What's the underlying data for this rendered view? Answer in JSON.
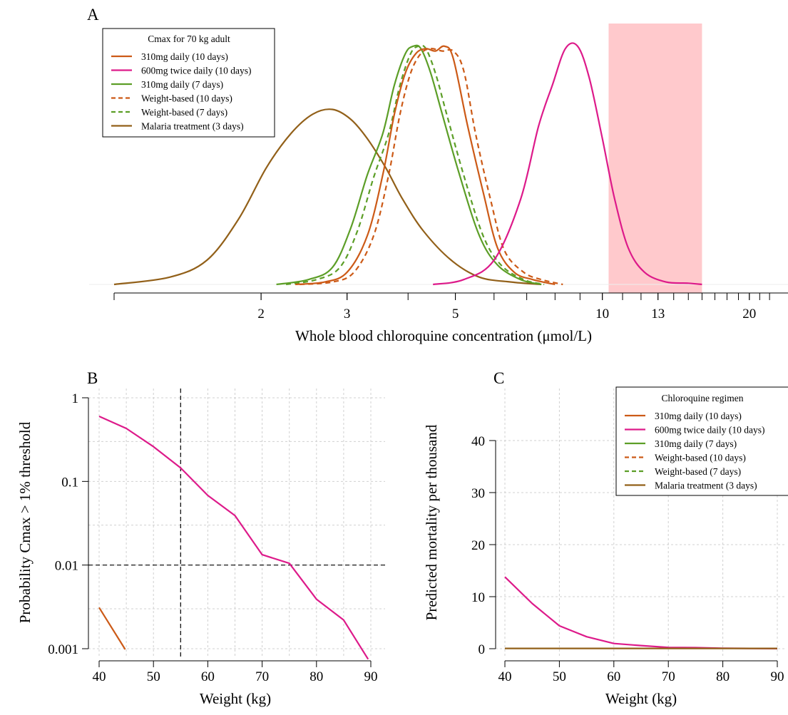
{
  "chart_data": [
    {
      "panel": "A",
      "type": "line",
      "subtype": "density",
      "xlabel": "Whole blood chloroquine concentration (μmol/L)",
      "xscale": "log",
      "xlim": [
        1,
        24
      ],
      "xticks": [
        2,
        3,
        5,
        10,
        13,
        20
      ],
      "xtick_labels": [
        "2",
        "3",
        "5",
        "10",
        "13",
        "20"
      ],
      "ylabel": "",
      "shaded_region": {
        "x": [
          10.3,
          16
        ],
        "color": "#ffc9cc"
      },
      "legend": {
        "title": "Cmax for 70 kg adult",
        "placement": "top-left",
        "entries": [
          {
            "label": "310mg daily (10 days)",
            "color": "#cc5a17",
            "dash": "solid"
          },
          {
            "label": "600mg twice daily (10 days)",
            "color": "#dd1a8a",
            "dash": "solid"
          },
          {
            "label": "310mg daily (7 days)",
            "color": "#5c9e27",
            "dash": "solid"
          },
          {
            "label": "Weight-based (10 days)",
            "color": "#cc5a17",
            "dash": "dashed"
          },
          {
            "label": "Weight-based (7 days)",
            "color": "#5c9e27",
            "dash": "dashed"
          },
          {
            "label": "Malaria treatment (3 days)",
            "color": "#926019",
            "dash": "solid"
          }
        ]
      },
      "series": [
        {
          "name": "310mg daily (10 days)",
          "color": "#cc5a17",
          "dash": "solid",
          "x": [
            2.35,
            2.7,
            3.0,
            3.3,
            3.55,
            3.75,
            3.95,
            4.15,
            4.35,
            4.55,
            4.75,
            4.95,
            5.3,
            5.7,
            6.1,
            6.6,
            7.2,
            8.0
          ],
          "y": [
            0.0,
            0.01,
            0.05,
            0.2,
            0.45,
            0.7,
            0.87,
            0.95,
            0.97,
            0.96,
            0.98,
            0.93,
            0.65,
            0.38,
            0.15,
            0.05,
            0.02,
            0.0
          ]
        },
        {
          "name": "600mg twice daily (10 days)",
          "color": "#dd1a8a",
          "dash": "solid",
          "x": [
            4.5,
            5.2,
            6.0,
            6.8,
            7.4,
            7.9,
            8.4,
            8.9,
            9.4,
            10.0,
            10.6,
            11.3,
            12.2,
            13.5,
            15.0,
            16.0
          ],
          "y": [
            0.0,
            0.02,
            0.1,
            0.35,
            0.65,
            0.82,
            0.97,
            0.98,
            0.85,
            0.6,
            0.35,
            0.15,
            0.05,
            0.01,
            0.005,
            0.0
          ]
        },
        {
          "name": "310mg daily (7 days)",
          "color": "#5c9e27",
          "dash": "solid",
          "x": [
            2.15,
            2.5,
            2.8,
            3.05,
            3.3,
            3.55,
            3.75,
            3.95,
            4.1,
            4.25,
            4.45,
            4.7,
            5.1,
            5.6,
            6.1,
            6.8,
            7.5
          ],
          "y": [
            0.0,
            0.02,
            0.07,
            0.23,
            0.45,
            0.62,
            0.82,
            0.95,
            0.98,
            0.97,
            0.87,
            0.7,
            0.45,
            0.2,
            0.08,
            0.02,
            0.0
          ]
        },
        {
          "name": "Weight-based (10 days)",
          "color": "#cc5a17",
          "dash": "dashed",
          "x": [
            2.4,
            2.8,
            3.1,
            3.4,
            3.65,
            3.85,
            4.05,
            4.25,
            4.45,
            4.7,
            4.95,
            5.2,
            5.5,
            5.9,
            6.3,
            6.9,
            7.5,
            8.3
          ],
          "y": [
            0.0,
            0.01,
            0.05,
            0.2,
            0.45,
            0.7,
            0.87,
            0.95,
            0.97,
            0.96,
            0.96,
            0.88,
            0.62,
            0.35,
            0.14,
            0.05,
            0.02,
            0.0
          ]
        },
        {
          "name": "Weight-based (7 days)",
          "color": "#5c9e27",
          "dash": "dashed",
          "x": [
            2.25,
            2.6,
            2.9,
            3.15,
            3.4,
            3.65,
            3.85,
            4.05,
            4.2,
            4.35,
            4.55,
            4.8,
            5.2,
            5.7,
            6.2,
            6.9,
            7.6
          ],
          "y": [
            0.0,
            0.02,
            0.07,
            0.22,
            0.44,
            0.62,
            0.82,
            0.95,
            0.98,
            0.97,
            0.87,
            0.7,
            0.45,
            0.2,
            0.08,
            0.02,
            0.0
          ]
        },
        {
          "name": "Malaria treatment (3 days)",
          "color": "#926019",
          "dash": "solid",
          "x": [
            1.0,
            1.3,
            1.55,
            1.8,
            2.05,
            2.3,
            2.55,
            2.8,
            3.05,
            3.3,
            3.6,
            3.9,
            4.3,
            4.9,
            5.6,
            6.5,
            7.5
          ],
          "y": [
            0.0,
            0.03,
            0.1,
            0.27,
            0.48,
            0.62,
            0.7,
            0.72,
            0.68,
            0.6,
            0.48,
            0.35,
            0.22,
            0.1,
            0.03,
            0.01,
            0.0
          ]
        }
      ]
    },
    {
      "panel": "B",
      "type": "line",
      "xlabel": "Weight (kg)",
      "ylabel": "Probability Cmax > 1% threshold",
      "xlim": [
        38,
        92
      ],
      "xticks": [
        40,
        50,
        60,
        70,
        80,
        90
      ],
      "xtick_labels": [
        "40",
        "50",
        "60",
        "70",
        "80",
        "90"
      ],
      "yscale": "log",
      "ylim": [
        0.001,
        1
      ],
      "yticks": [
        0.001,
        0.01,
        0.1,
        1
      ],
      "ytick_labels": [
        "0.001",
        "0.01",
        "0.1",
        "1"
      ],
      "grid": true,
      "reference_lines": {
        "vertical_x": 55,
        "horizontal_y": 0.01
      },
      "series": [
        {
          "name": "600mg twice daily (10 days)",
          "color": "#dd1a8a",
          "x": [
            40,
            45,
            50,
            55,
            60,
            65,
            70,
            75,
            80,
            85,
            89.5
          ],
          "y": [
            0.6,
            0.43,
            0.26,
            0.145,
            0.068,
            0.039,
            0.0133,
            0.0105,
            0.0039,
            0.0022,
            0.00075
          ]
        },
        {
          "name": "310mg daily (10 days)",
          "color": "#cc5a17",
          "x": [
            40,
            44.8
          ],
          "y": [
            0.0031,
            0.00098
          ]
        }
      ]
    },
    {
      "panel": "C",
      "type": "line",
      "xlabel": "Weight (kg)",
      "ylabel": "Predicted mortality per thousand",
      "xlim": [
        38,
        92
      ],
      "xticks": [
        40,
        50,
        60,
        70,
        80,
        90
      ],
      "xtick_labels": [
        "40",
        "50",
        "60",
        "70",
        "80",
        "90"
      ],
      "ylim": [
        -1.5,
        46
      ],
      "yticks": [
        0,
        10,
        20,
        30,
        40
      ],
      "ytick_labels": [
        "0",
        "10",
        "20",
        "30",
        "40"
      ],
      "grid": true,
      "legend": {
        "title": "Chloroquine regimen",
        "placement": "top-right",
        "entries": [
          {
            "label": "310mg daily (10 days)",
            "color": "#cc5a17",
            "dash": "solid"
          },
          {
            "label": "600mg twice daily (10 days)",
            "color": "#dd1a8a",
            "dash": "solid"
          },
          {
            "label": "310mg daily (7 days)",
            "color": "#5c9e27",
            "dash": "solid"
          },
          {
            "label": "Weight-based (10 days)",
            "color": "#cc5a17",
            "dash": "dashed"
          },
          {
            "label": "Weight-based (7 days)",
            "color": "#5c9e27",
            "dash": "dashed"
          },
          {
            "label": "Malaria treatment (3 days)",
            "color": "#926019",
            "dash": "solid"
          }
        ]
      },
      "series": [
        {
          "name": "600mg twice daily (10 days)",
          "color": "#dd1a8a",
          "x": [
            40,
            45,
            50,
            55,
            60,
            65,
            70,
            75,
            80,
            85,
            90
          ],
          "y": [
            13.8,
            8.7,
            4.4,
            2.3,
            1.0,
            0.6,
            0.25,
            0.2,
            0.1,
            0.05,
            0.02
          ]
        },
        {
          "name": "Malaria treatment (3 days)",
          "color": "#926019",
          "x": [
            40,
            90
          ],
          "y": [
            0.05,
            0.05
          ]
        }
      ]
    }
  ],
  "panels": {
    "a": {
      "letter": "A"
    },
    "b": {
      "letter": "B"
    },
    "c": {
      "letter": "C"
    }
  }
}
